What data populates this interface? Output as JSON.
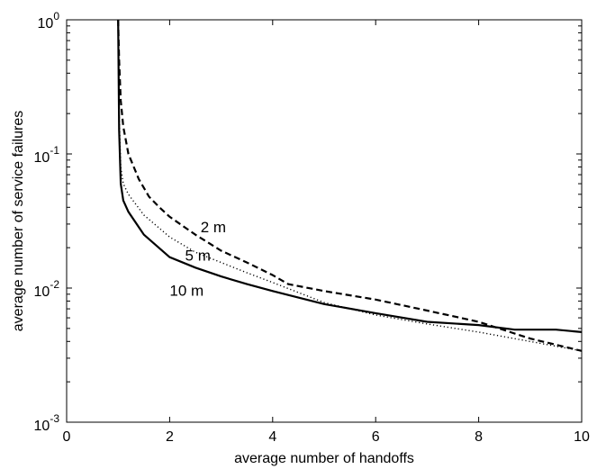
{
  "chart_data": {
    "type": "line",
    "xlabel": "average number of handoffs",
    "ylabel": "average number of service failures",
    "xlim": [
      0,
      10
    ],
    "ylim": [
      0.001,
      1
    ],
    "yscale": "log",
    "grid": false,
    "x_ticks": [
      {
        "value": 0,
        "label": "0"
      },
      {
        "value": 2,
        "label": "2"
      },
      {
        "value": 4,
        "label": "4"
      },
      {
        "value": 6,
        "label": "6"
      },
      {
        "value": 8,
        "label": "8"
      },
      {
        "value": 10,
        "label": "10"
      }
    ],
    "y_ticks": [
      {
        "value": 0.001,
        "base": "10",
        "exp": "-3"
      },
      {
        "value": 0.01,
        "base": "10",
        "exp": "-2"
      },
      {
        "value": 0.1,
        "base": "10",
        "exp": "-1"
      },
      {
        "value": 1,
        "base": "10",
        "exp": "0"
      }
    ],
    "series": [
      {
        "name": "2 m",
        "style": "dashed",
        "color": "#000000",
        "points": [
          [
            1.0,
            1.0
          ],
          [
            1.02,
            0.5
          ],
          [
            1.05,
            0.25
          ],
          [
            1.1,
            0.16
          ],
          [
            1.2,
            0.1
          ],
          [
            1.4,
            0.065
          ],
          [
            1.6,
            0.048
          ],
          [
            1.8,
            0.04
          ],
          [
            2.0,
            0.034
          ],
          [
            2.5,
            0.025
          ],
          [
            3.0,
            0.019
          ],
          [
            3.5,
            0.0155
          ],
          [
            4.0,
            0.0125
          ],
          [
            4.3,
            0.0107
          ],
          [
            5.0,
            0.0095
          ],
          [
            6.0,
            0.0082
          ],
          [
            7.0,
            0.0068
          ],
          [
            8.0,
            0.0056
          ],
          [
            9.0,
            0.0042
          ],
          [
            10.0,
            0.0034
          ]
        ]
      },
      {
        "name": "5 m",
        "style": "dotted",
        "color": "#000000",
        "points": [
          [
            1.0,
            1.0
          ],
          [
            1.02,
            0.2
          ],
          [
            1.05,
            0.08
          ],
          [
            1.1,
            0.06
          ],
          [
            1.2,
            0.05
          ],
          [
            1.5,
            0.035
          ],
          [
            2.0,
            0.024
          ],
          [
            2.5,
            0.0185
          ],
          [
            3.0,
            0.0155
          ],
          [
            3.5,
            0.013
          ],
          [
            4.0,
            0.011
          ],
          [
            5.0,
            0.0078
          ],
          [
            6.0,
            0.0063
          ],
          [
            7.0,
            0.0054
          ],
          [
            8.0,
            0.0047
          ],
          [
            9.0,
            0.004
          ],
          [
            10.0,
            0.0034
          ]
        ]
      },
      {
        "name": "10 m",
        "style": "solid",
        "color": "#000000",
        "points": [
          [
            1.0,
            1.0
          ],
          [
            1.02,
            0.15
          ],
          [
            1.05,
            0.06
          ],
          [
            1.1,
            0.045
          ],
          [
            1.2,
            0.037
          ],
          [
            1.5,
            0.025
          ],
          [
            2.0,
            0.017
          ],
          [
            2.5,
            0.0142
          ],
          [
            3.0,
            0.0122
          ],
          [
            3.5,
            0.0107
          ],
          [
            4.0,
            0.0095
          ],
          [
            5.0,
            0.0076
          ],
          [
            6.0,
            0.0065
          ],
          [
            7.0,
            0.0056
          ],
          [
            8.0,
            0.0053
          ],
          [
            8.7,
            0.0049
          ],
          [
            9.5,
            0.0049
          ],
          [
            10.0,
            0.0047
          ]
        ]
      }
    ],
    "annotations": [
      {
        "text": "2 m",
        "x": 2.6,
        "y": 0.026
      },
      {
        "text": "5 m",
        "x": 2.3,
        "y": 0.016
      },
      {
        "text": "10 m",
        "x": 2.0,
        "y": 0.0088
      }
    ]
  }
}
